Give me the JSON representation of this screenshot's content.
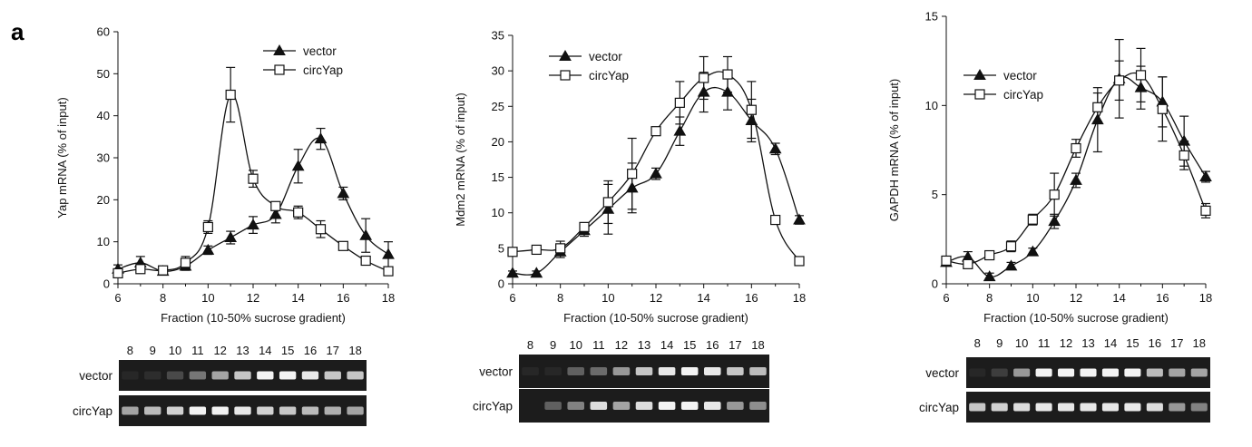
{
  "panel_letter": "a",
  "colors": {
    "line": "#111111",
    "gel_bg": "#1c1c1c",
    "band": "#ffffff"
  },
  "chart_data": [
    {
      "type": "line",
      "ylabel": "Yap mRNA (% of input)",
      "xlabel": "Fraction (10-50% sucrose gradient)",
      "xlim": [
        6,
        18
      ],
      "ylim": [
        0,
        60
      ],
      "xticks": [
        6,
        8,
        10,
        12,
        14,
        16,
        18
      ],
      "yticks": [
        0,
        10,
        20,
        30,
        40,
        50,
        60
      ],
      "x": [
        6,
        7,
        8,
        9,
        10,
        11,
        12,
        13,
        14,
        15,
        16,
        17,
        18
      ],
      "legend_position": "top-right",
      "series": [
        {
          "name": "vector",
          "marker": "filled-triangle",
          "values": [
            3.5,
            5,
            3,
            4.2,
            8,
            11,
            14,
            16.5,
            28,
            34.5,
            21.5,
            11.5,
            7
          ],
          "errors": [
            1,
            1.5,
            0.6,
            1,
            1,
            1.5,
            2,
            2,
            4,
            2.5,
            1.5,
            4,
            3
          ]
        },
        {
          "name": "circYap",
          "marker": "open-square",
          "values": [
            2.5,
            3.5,
            3.2,
            5,
            13.5,
            45,
            25,
            18.5,
            17,
            13,
            9,
            5.5,
            3
          ],
          "errors": [
            0.8,
            0.8,
            0.5,
            1.5,
            1.5,
            6.5,
            2,
            1,
            1.5,
            2,
            0.6,
            0.6,
            0.5
          ]
        }
      ]
    },
    {
      "type": "line",
      "ylabel": "Mdm2 mRNA (% of input)",
      "xlabel": "Fraction (10-50% sucrose gradient)",
      "xlim": [
        6,
        18
      ],
      "ylim": [
        0,
        35
      ],
      "xticks": [
        6,
        8,
        10,
        12,
        14,
        16,
        18
      ],
      "yticks": [
        0,
        5,
        10,
        15,
        20,
        25,
        30,
        35
      ],
      "x": [
        6,
        7,
        8,
        9,
        10,
        11,
        12,
        13,
        14,
        15,
        16,
        17,
        18
      ],
      "legend_position": "top-left",
      "series": [
        {
          "name": "vector",
          "marker": "filled-triangle",
          "values": [
            1.5,
            1.5,
            4.5,
            7.5,
            10.5,
            13.5,
            15.5,
            21.5,
            27,
            27,
            23,
            19,
            9
          ],
          "errors": [
            0.3,
            0.3,
            0.8,
            0.8,
            3.5,
            3.5,
            0.8,
            2,
            2.8,
            2.5,
            3,
            0.8,
            0.6
          ]
        },
        {
          "name": "circYap",
          "marker": "open-square",
          "values": [
            4.5,
            4.8,
            5,
            8,
            11.5,
            15.5,
            21.5,
            25.5,
            29,
            29.5,
            24.5,
            9,
            3.2
          ],
          "errors": [
            0.3,
            0.3,
            1,
            0.5,
            3,
            5,
            0.5,
            3,
            3,
            2.5,
            4,
            0.5,
            0.3
          ]
        }
      ]
    },
    {
      "type": "line",
      "ylabel": "GAPDH mRNA (% of input)",
      "xlabel": "Fraction (10-50% sucrose gradient)",
      "xlim": [
        6,
        18
      ],
      "ylim": [
        0,
        15
      ],
      "xticks": [
        6,
        8,
        10,
        12,
        14,
        16,
        18
      ],
      "yticks": [
        0,
        5,
        10,
        15
      ],
      "x": [
        6,
        7,
        8,
        9,
        10,
        11,
        12,
        13,
        14,
        15,
        16,
        17,
        18
      ],
      "legend_position": "top-left",
      "series": [
        {
          "name": "vector",
          "marker": "filled-triangle",
          "values": [
            1.2,
            1.5,
            0.4,
            1,
            1.8,
            3.5,
            5.8,
            9.2,
            11.5,
            11,
            10.2,
            8,
            6
          ],
          "errors": [
            0.2,
            0.3,
            0.2,
            0.2,
            0.2,
            0.4,
            0.4,
            1.8,
            2.2,
            1.2,
            1.4,
            1.4,
            0.3
          ]
        },
        {
          "name": "circYap",
          "marker": "open-square",
          "values": [
            1.3,
            1.1,
            1.6,
            2.1,
            3.6,
            5,
            7.6,
            9.9,
            11.4,
            11.7,
            9.8,
            7.2,
            4.1
          ],
          "errors": [
            0.2,
            0.2,
            0.2,
            0.3,
            0.3,
            1.2,
            0.5,
            0.8,
            1.1,
            1.5,
            1.8,
            0.8,
            0.4
          ]
        }
      ]
    }
  ],
  "gels": [
    {
      "lanes": [
        "8",
        "9",
        "10",
        "11",
        "12",
        "13",
        "14",
        "15",
        "16",
        "17",
        "18"
      ],
      "rows": [
        {
          "label": "vector",
          "intensity": [
            0.05,
            0.08,
            0.2,
            0.4,
            0.6,
            0.75,
            0.95,
            0.95,
            0.9,
            0.75,
            0.75
          ]
        },
        {
          "label": "circYap",
          "intensity": [
            0.6,
            0.7,
            0.8,
            0.95,
            0.95,
            0.9,
            0.8,
            0.75,
            0.7,
            0.65,
            0.6
          ]
        }
      ]
    },
    {
      "lanes": [
        "8",
        "9",
        "10",
        "11",
        "12",
        "13",
        "14",
        "15",
        "16",
        "17",
        "18"
      ],
      "rows": [
        {
          "label": "vector",
          "intensity": [
            0.05,
            0.05,
            0.3,
            0.35,
            0.55,
            0.75,
            0.9,
            0.95,
            0.9,
            0.75,
            0.7
          ]
        },
        {
          "label": "circYap",
          "intensity": [
            0.0,
            0.3,
            0.45,
            0.85,
            0.6,
            0.85,
            0.95,
            0.95,
            0.9,
            0.55,
            0.5
          ]
        }
      ]
    },
    {
      "lanes": [
        "8",
        "9",
        "10",
        "11",
        "12",
        "13",
        "14",
        "15",
        "16",
        "17",
        "18"
      ],
      "rows": [
        {
          "label": "vector",
          "intensity": [
            0.05,
            0.15,
            0.55,
            0.95,
            0.95,
            0.95,
            0.95,
            0.95,
            0.7,
            0.6,
            0.6
          ]
        },
        {
          "label": "circYap",
          "intensity": [
            0.75,
            0.8,
            0.85,
            0.9,
            0.9,
            0.9,
            0.9,
            0.9,
            0.85,
            0.55,
            0.45
          ]
        }
      ]
    }
  ]
}
